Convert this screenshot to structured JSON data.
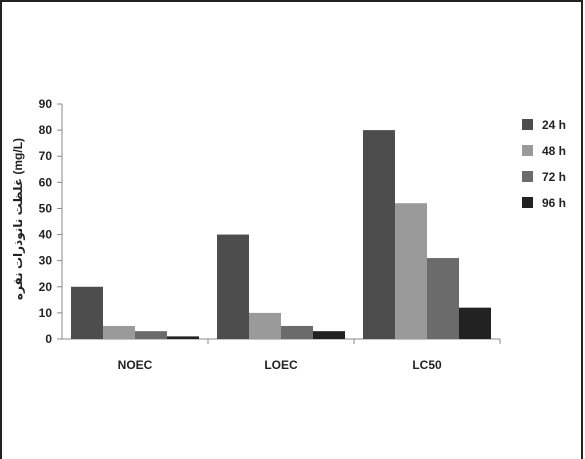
{
  "chart_data": {
    "type": "bar",
    "title": "",
    "xlabel": "",
    "ylabel": "غلظت نانوذرات نقره (mg/L)",
    "ylim": [
      0,
      90
    ],
    "yticks": [
      0,
      10,
      20,
      30,
      40,
      50,
      60,
      70,
      80,
      90
    ],
    "categories": [
      "NOEC",
      "LOEC",
      "LC50"
    ],
    "legend_position": "right",
    "grid": false,
    "series": [
      {
        "name": "24 h",
        "color": "#4d4d4d",
        "values": [
          20,
          40,
          80
        ]
      },
      {
        "name": "48 h",
        "color": "#9a9a9a",
        "values": [
          5,
          10,
          52
        ]
      },
      {
        "name": "72 h",
        "color": "#6b6b6b",
        "values": [
          3,
          5,
          31
        ]
      },
      {
        "name": "96 h",
        "color": "#222222",
        "values": [
          1,
          3,
          12
        ]
      }
    ]
  }
}
